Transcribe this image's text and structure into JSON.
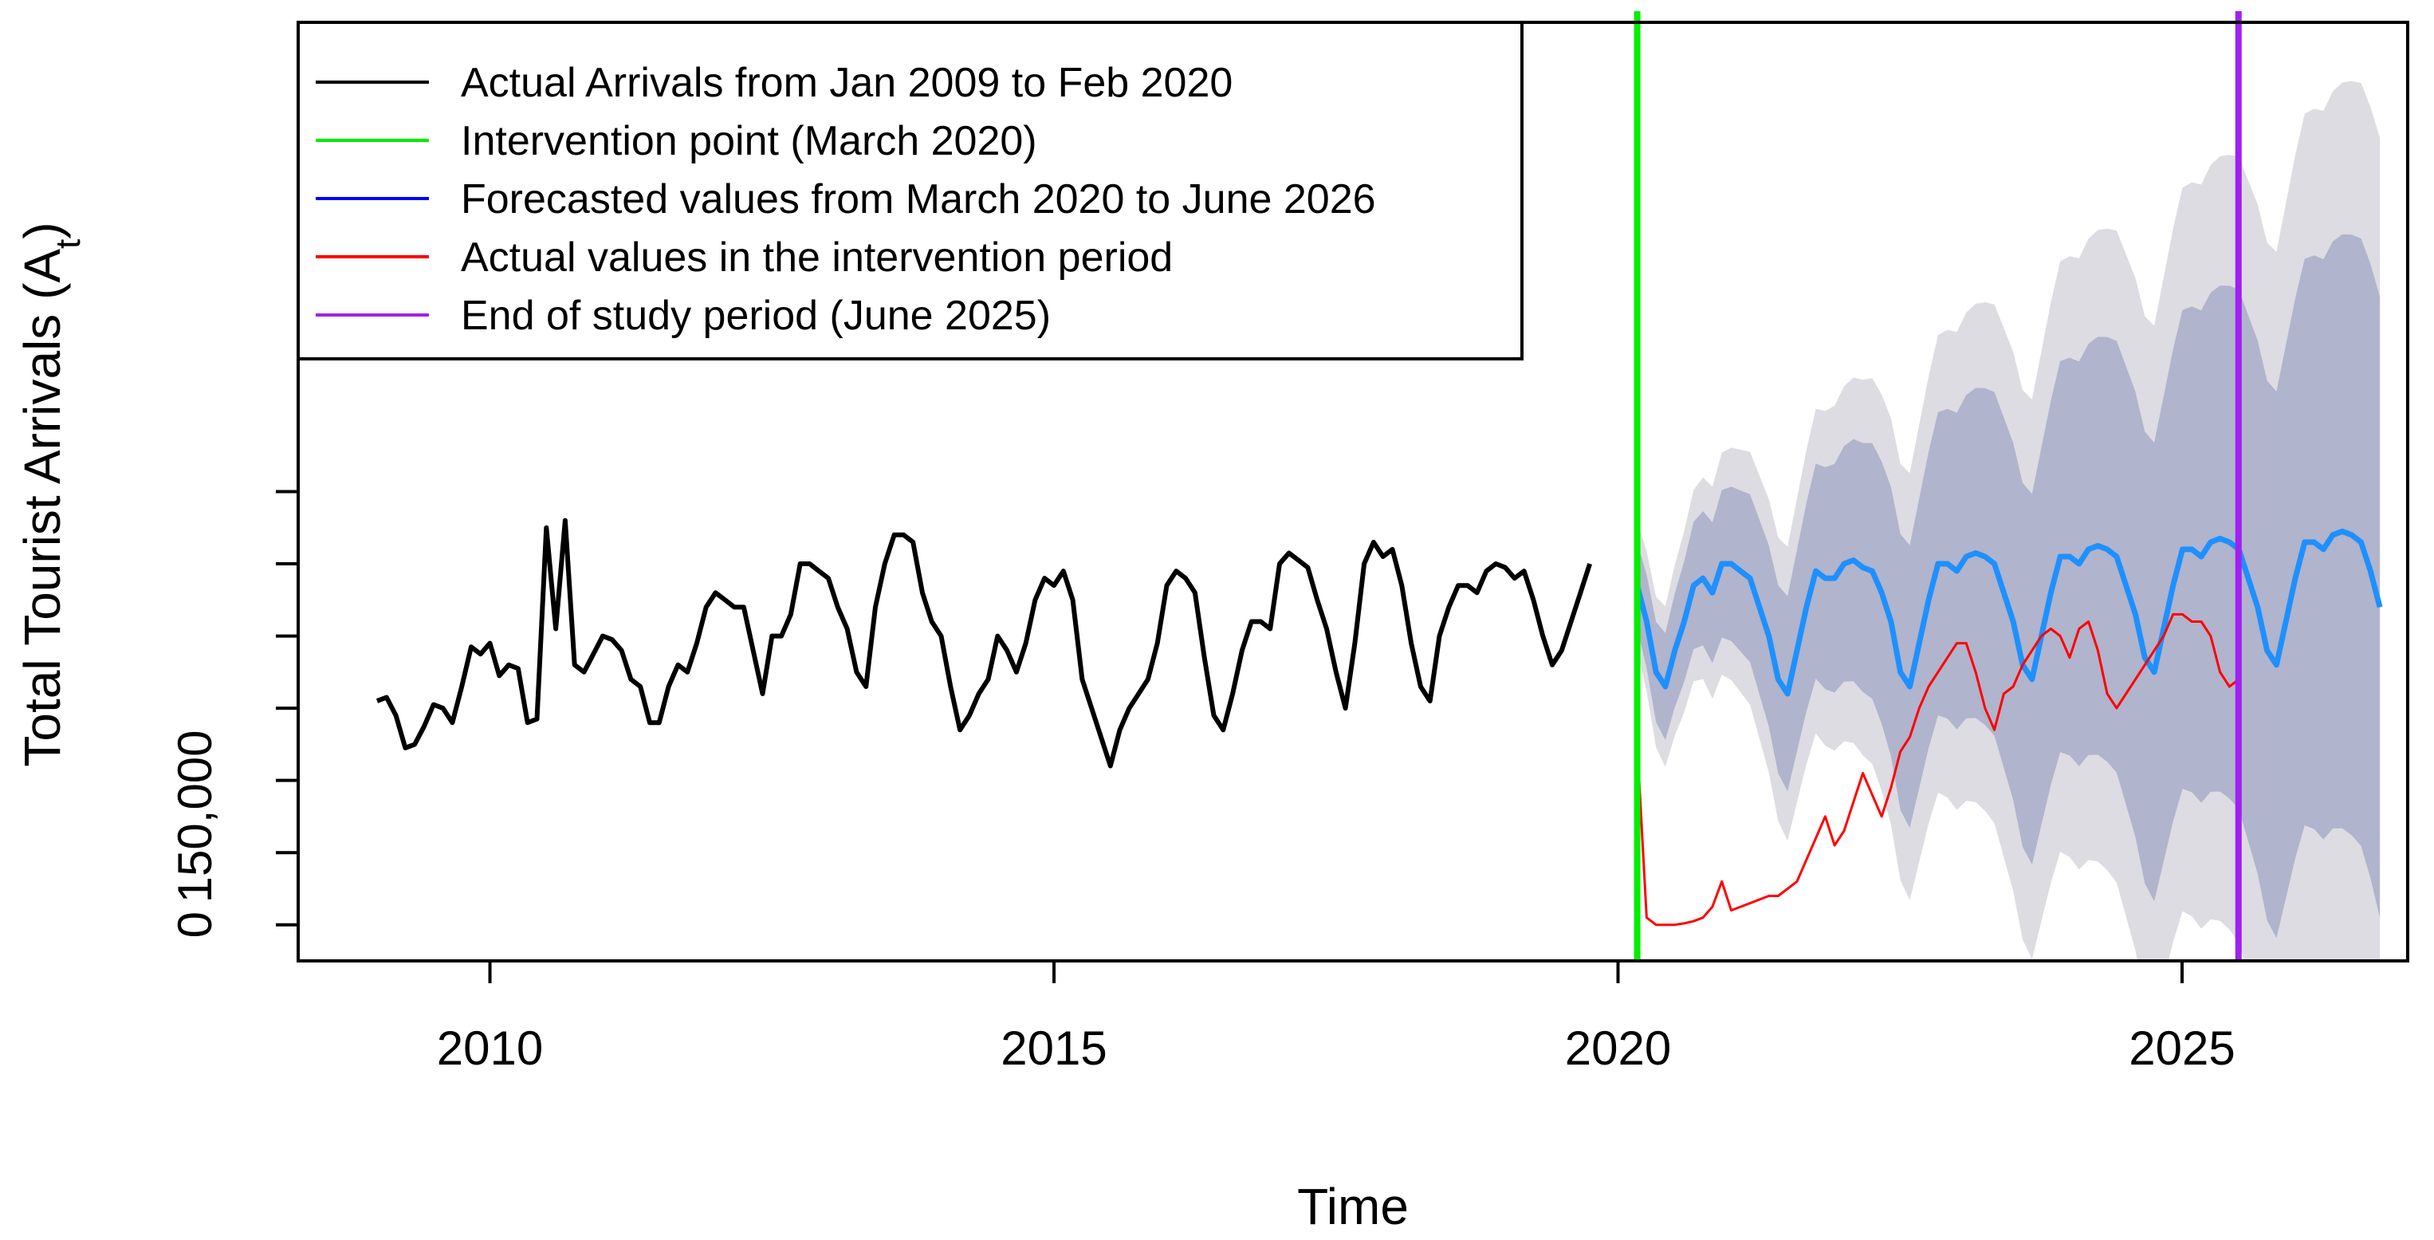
{
  "chart_data": {
    "type": "line",
    "xlabel": "Time",
    "ylabel": "Total Tourist Arrivals (A",
    "ylabel_subscript": "t",
    "ylabel_close": ")",
    "xlim": [
      2008.3,
      2027.0
    ],
    "ylim": [
      -50000,
      1250000
    ],
    "x_ticks": [
      2010,
      2015,
      2020,
      2025
    ],
    "x_tick_labels": [
      "2010",
      "2015",
      "2020",
      "2025"
    ],
    "y_ticks": [
      0,
      100000,
      200000,
      300000,
      400000,
      500000,
      600000
    ],
    "y_tick_labels": [
      {
        "value": 0,
        "label": "0"
      },
      {
        "value": 150000,
        "label": "150,000"
      }
    ],
    "legend": [
      {
        "label": "Actual Arrivals from Jan 2009 to Feb 2020",
        "color": "#000000"
      },
      {
        "label": "Intervention point (March 2020)",
        "color": "#00ee00"
      },
      {
        "label": "Forecasted values from March 2020 to June 2026",
        "color": "#0000ff"
      },
      {
        "label": "Actual values in the intervention period",
        "color": "#ff0000"
      },
      {
        "label": "End of study period (June 2025)",
        "color": "#a020f0"
      }
    ],
    "vlines": [
      {
        "name": "intervention",
        "x": 2020.17,
        "color": "#00ee00"
      },
      {
        "name": "end-of-study",
        "x": 2025.5,
        "color": "#a020f0"
      }
    ],
    "series": [
      {
        "name": "Actual Arrivals from Jan 2009 to Feb 2020",
        "color": "#000000",
        "start_year": 2009.0,
        "values": [
          310000,
          315000,
          290000,
          245000,
          250000,
          275000,
          305000,
          300000,
          280000,
          330000,
          385000,
          375000,
          390000,
          345000,
          360000,
          355000,
          280000,
          285000,
          550000,
          410000,
          560000,
          360000,
          350000,
          375000,
          400000,
          395000,
          380000,
          340000,
          330000,
          280000,
          280000,
          330000,
          360000,
          350000,
          390000,
          440000,
          460000,
          450000,
          440000,
          440000,
          380000,
          320000,
          400000,
          400000,
          430000,
          500000,
          500000,
          490000,
          480000,
          440000,
          410000,
          350000,
          330000,
          440000,
          500000,
          540000,
          540000,
          530000,
          460000,
          420000,
          400000,
          330000,
          270000,
          290000,
          320000,
          340000,
          400000,
          380000,
          350000,
          390000,
          450000,
          480000,
          470000,
          490000,
          450000,
          340000,
          300000,
          260000,
          220000,
          270000,
          300000,
          320000,
          340000,
          390000,
          470000,
          490000,
          480000,
          460000,
          370000,
          290000,
          270000,
          320000,
          380000,
          420000,
          420000,
          410000,
          500000,
          515000,
          505000,
          495000,
          450000,
          410000,
          350000,
          300000,
          390000,
          500000,
          530000,
          510000,
          520000,
          470000,
          390000,
          330000,
          310000,
          400000,
          440000,
          470000,
          470000,
          460000,
          490000,
          500000,
          495000,
          480000,
          490000,
          450000,
          400000,
          360000,
          380000,
          420000,
          460000,
          500000
        ]
      },
      {
        "name": "Forecasted values from March 2020 to June 2026",
        "color": "#1e90ff",
        "start_year": 2020.17,
        "values": [
          470000,
          420000,
          350000,
          330000,
          380000,
          420000,
          470000,
          480000,
          460000,
          500000,
          500000,
          490000,
          480000,
          440000,
          400000,
          340000,
          320000,
          380000,
          440000,
          490000,
          480000,
          480000,
          500000,
          505000,
          495000,
          490000,
          460000,
          420000,
          350000,
          330000,
          390000,
          450000,
          500000,
          500000,
          490000,
          510000,
          515000,
          510000,
          500000,
          460000,
          420000,
          360000,
          340000,
          400000,
          460000,
          510000,
          510000,
          500000,
          520000,
          525000,
          520000,
          510000,
          470000,
          430000,
          370000,
          350000,
          410000,
          470000,
          520000,
          520000,
          510000,
          530000,
          535000,
          530000,
          520000,
          480000,
          440000,
          380000,
          360000,
          420000,
          480000,
          530000,
          530000,
          520000,
          540000,
          545000,
          540000,
          530000,
          490000,
          440000
        ]
      },
      {
        "name": "Actual values in the intervention period",
        "color": "#ff0000",
        "start_year": 2020.17,
        "values": [
          250000,
          10000,
          0,
          0,
          0,
          2000,
          5000,
          10000,
          25000,
          60000,
          20000,
          25000,
          30000,
          35000,
          40000,
          40000,
          50000,
          60000,
          90000,
          120000,
          150000,
          110000,
          130000,
          170000,
          210000,
          180000,
          150000,
          190000,
          240000,
          260000,
          300000,
          330000,
          350000,
          370000,
          390000,
          390000,
          350000,
          300000,
          270000,
          320000,
          330000,
          360000,
          380000,
          400000,
          410000,
          400000,
          370000,
          410000,
          420000,
          380000,
          320000,
          300000,
          320000,
          340000,
          360000,
          380000,
          400000,
          430000,
          430000,
          420000,
          420000,
          400000,
          350000,
          330000,
          340000
        ]
      }
    ],
    "bands": {
      "start_year": 2020.17,
      "end_year": 2026.5,
      "inner_color": "#b0b4cc",
      "outer_color": "#dcdce2",
      "inner_halfwidth_start": 60000,
      "inner_halfwidth_end": 430000,
      "outer_halfwidth_start": 90000,
      "outer_halfwidth_end": 650000
    }
  }
}
